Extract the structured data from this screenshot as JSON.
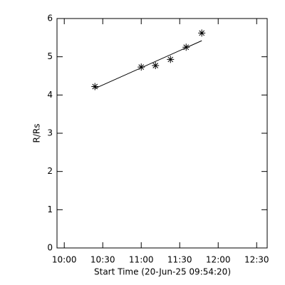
{
  "chart_data": {
    "type": "scatter",
    "xlabel": "Start Time (20-Jun-25 09:54:20)",
    "ylabel": "R/Rs",
    "xlim": [
      594.33,
      758.2
    ],
    "xticks": [
      {
        "value": 600,
        "label": "10:00"
      },
      {
        "value": 630,
        "label": "10:30"
      },
      {
        "value": 660,
        "label": "11:00"
      },
      {
        "value": 690,
        "label": "11:30"
      },
      {
        "value": 720,
        "label": "12:00"
      },
      {
        "value": 750,
        "label": "12:30"
      }
    ],
    "ylim": [
      0,
      6
    ],
    "yticks": [
      0,
      1,
      2,
      3,
      4,
      5,
      6
    ],
    "color": "#000000",
    "points": {
      "x": [
        623.9,
        660,
        671.1,
        682.8,
        695,
        707.2
      ],
      "y": [
        4.22,
        4.73,
        4.77,
        4.93,
        5.25,
        5.62
      ]
    },
    "fit": {
      "x": [
        623.9,
        707.2
      ],
      "y": [
        4.17,
        5.42
      ]
    }
  }
}
